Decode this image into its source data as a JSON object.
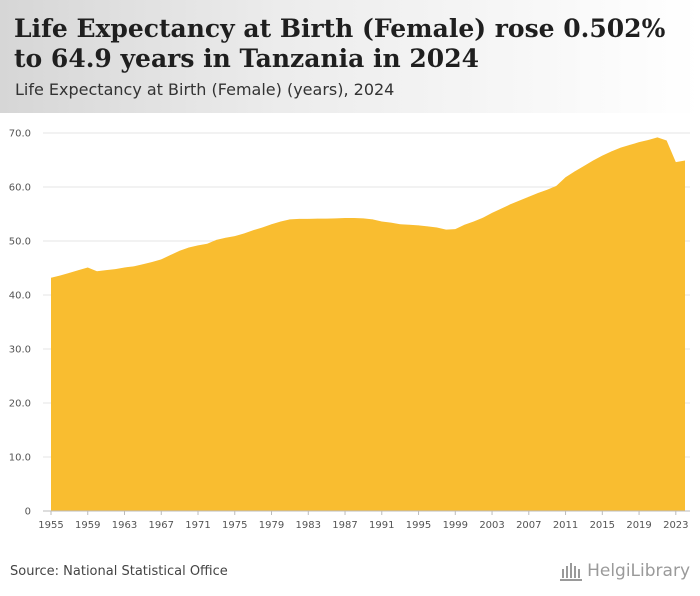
{
  "title": "Life Expectancy at Birth (Female) rose 0.502% to 64.9 years in Tanzania in 2024",
  "subtitle": "Life Expectancy at Birth (Female) (years), 2024",
  "source": "Source: National Statistical Office",
  "brand": "HelgiLibrary",
  "colors": {
    "fill": "#f9bd30",
    "grid": "#e6e6e6",
    "axis": "#bbbbbb"
  },
  "chart_data": {
    "type": "area",
    "title": "Life Expectancy at Birth (Female) (years), 2024",
    "xlabel": "",
    "ylabel": "years",
    "ylim": [
      0,
      70
    ],
    "y_ticks": [
      "0",
      "10.0",
      "20.0",
      "30.0",
      "40.0",
      "50.0",
      "60.0",
      "70.0"
    ],
    "x_tick_labels": [
      "1955",
      "1959",
      "1963",
      "1967",
      "1971",
      "1975",
      "1979",
      "1983",
      "1987",
      "1991",
      "1995",
      "1999",
      "2003",
      "2007",
      "2011",
      "2015",
      "2019",
      "2023"
    ],
    "series": [
      {
        "name": "Life Expectancy at Birth (Female)",
        "x": [
          1955,
          1956,
          1957,
          1958,
          1959,
          1960,
          1961,
          1962,
          1963,
          1964,
          1965,
          1966,
          1967,
          1968,
          1969,
          1970,
          1971,
          1972,
          1973,
          1974,
          1975,
          1976,
          1977,
          1978,
          1979,
          1980,
          1981,
          1982,
          1983,
          1984,
          1985,
          1986,
          1987,
          1988,
          1989,
          1990,
          1991,
          1992,
          1993,
          1994,
          1995,
          1996,
          1997,
          1998,
          1999,
          2000,
          2001,
          2002,
          2003,
          2004,
          2005,
          2006,
          2007,
          2008,
          2009,
          2010,
          2011,
          2012,
          2013,
          2014,
          2015,
          2016,
          2017,
          2018,
          2019,
          2020,
          2021,
          2022,
          2023,
          2024
        ],
        "values": [
          43.2,
          43.6,
          44.1,
          44.6,
          45.1,
          44.4,
          44.6,
          44.8,
          45.1,
          45.3,
          45.7,
          46.1,
          46.6,
          47.4,
          48.2,
          48.8,
          49.2,
          49.5,
          50.2,
          50.6,
          50.9,
          51.4,
          52.0,
          52.5,
          53.1,
          53.6,
          54.0,
          54.1,
          54.1,
          54.15,
          54.15,
          54.2,
          54.25,
          54.25,
          54.2,
          54.0,
          53.6,
          53.4,
          53.1,
          53.0,
          52.9,
          52.7,
          52.5,
          52.1,
          52.2,
          53.0,
          53.6,
          54.3,
          55.2,
          56.0,
          56.8,
          57.5,
          58.2,
          58.9,
          59.5,
          60.2,
          61.8,
          62.9,
          63.9,
          64.9,
          65.8,
          66.6,
          67.3,
          67.8,
          68.3,
          68.7,
          69.2,
          68.6,
          64.6,
          64.9
        ]
      }
    ]
  }
}
